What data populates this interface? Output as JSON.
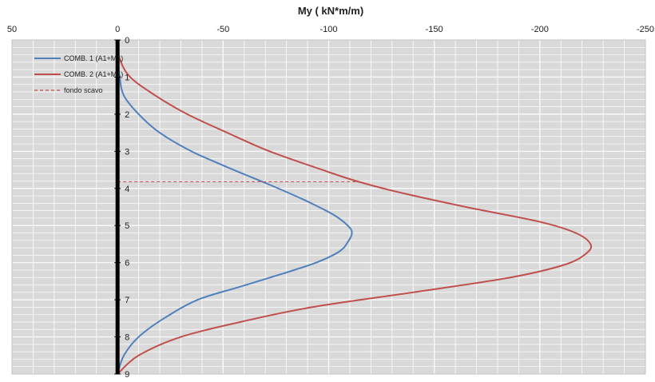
{
  "chart_data": {
    "type": "line",
    "title": "My ( kN*m/m)",
    "xlabel": "",
    "ylabel": "",
    "x_axis_position": "top",
    "x_reversed": true,
    "y_inverted": true,
    "xlim": [
      50,
      -250
    ],
    "ylim": [
      0,
      9
    ],
    "x_ticks": [
      50,
      0,
      -50,
      -100,
      -150,
      -200,
      -250
    ],
    "x_tick_labels": [
      "50",
      "0",
      "-50",
      "-100",
      "-150",
      "-200",
      "-250"
    ],
    "y_ticks": [
      0,
      1,
      2,
      3,
      4,
      5,
      6,
      7,
      8,
      9
    ],
    "y_tick_labels": [
      "0",
      "1",
      "2",
      "3",
      "4",
      "5",
      "6",
      "7",
      "8",
      "9"
    ],
    "grid": true,
    "legend_position": "top-left",
    "colors": {
      "plot_background": "#d9d9d9",
      "grid": "#ffffff",
      "wall": "#000000",
      "series1": "#4f81bd",
      "series2": "#c0504d"
    },
    "series": [
      {
        "name": "COMB. 1 (A1+M1)",
        "color": "#4f81bd",
        "style": "solid",
        "points": [
          [
            0,
            0
          ],
          [
            0,
            0.5
          ],
          [
            -1,
            1.0
          ],
          [
            -3,
            1.5
          ],
          [
            -10,
            2.0
          ],
          [
            -20,
            2.5
          ],
          [
            -35,
            3.0
          ],
          [
            -55,
            3.5
          ],
          [
            -72,
            3.9
          ],
          [
            -88,
            4.3
          ],
          [
            -102,
            4.7
          ],
          [
            -109,
            5.0
          ],
          [
            -111,
            5.2
          ],
          [
            -109,
            5.45
          ],
          [
            -105,
            5.7
          ],
          [
            -94,
            6.0
          ],
          [
            -78,
            6.3
          ],
          [
            -58,
            6.65
          ],
          [
            -38,
            7.0
          ],
          [
            -22,
            7.5
          ],
          [
            -10,
            8.0
          ],
          [
            -3,
            8.5
          ],
          [
            0,
            9.0
          ]
        ]
      },
      {
        "name": "COMB. 2 (A1+M1)",
        "color": "#c0504d",
        "style": "solid",
        "points": [
          [
            0,
            0
          ],
          [
            -1,
            0.5
          ],
          [
            -6,
            1.0
          ],
          [
            -18,
            1.5
          ],
          [
            -33,
            2.0
          ],
          [
            -52,
            2.5
          ],
          [
            -72,
            3.0
          ],
          [
            -97,
            3.5
          ],
          [
            -113,
            3.8
          ],
          [
            -133,
            4.1
          ],
          [
            -165,
            4.5
          ],
          [
            -200,
            4.9
          ],
          [
            -217,
            5.2
          ],
          [
            -224,
            5.5
          ],
          [
            -222,
            5.75
          ],
          [
            -212,
            6.05
          ],
          [
            -186,
            6.4
          ],
          [
            -140,
            6.8
          ],
          [
            -92,
            7.2
          ],
          [
            -58,
            7.6
          ],
          [
            -30,
            8.0
          ],
          [
            -10,
            8.5
          ],
          [
            0,
            9.0
          ]
        ]
      },
      {
        "name": "fondo scavo",
        "color": "#c0504d",
        "style": "dashed",
        "points": [
          [
            0,
            3.82
          ],
          [
            -113,
            3.82
          ]
        ]
      }
    ]
  }
}
